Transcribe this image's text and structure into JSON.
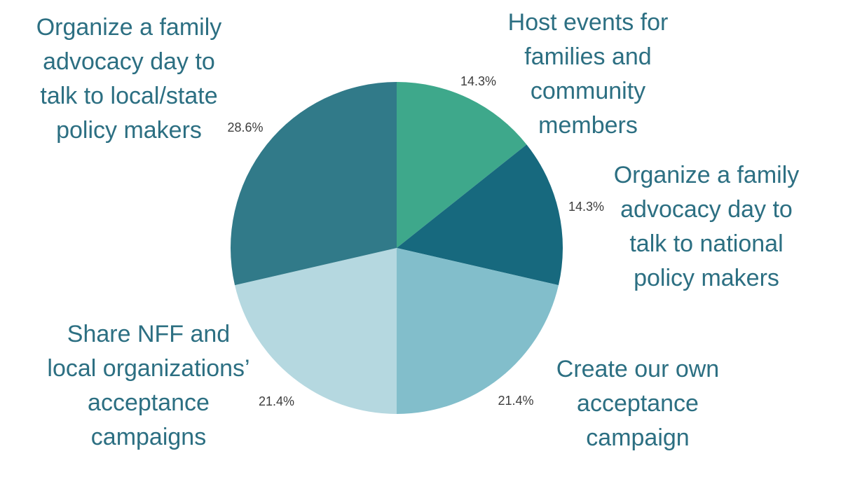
{
  "chart_data": {
    "type": "pie",
    "direction": "clockwise",
    "start_angle_deg": 0,
    "legend": "none",
    "background": "#ffffff",
    "label_color": "#2c6f82",
    "pct_color": "#3d3d3d",
    "slices": [
      {
        "label": "Host events for\nfamilies and\ncommunity\nmembers",
        "value": 14.3,
        "pct_label": "14.3%",
        "color": "#3ea88b"
      },
      {
        "label": "Organize a family\nadvocacy day to\ntalk to national\npolicy makers",
        "value": 14.3,
        "pct_label": "14.3%",
        "color": "#17697e"
      },
      {
        "label": "Create our own\nacceptance\ncampaign",
        "value": 21.4,
        "pct_label": "21.4%",
        "color": "#82becb"
      },
      {
        "label": "Share NFF and\nlocal organizations’\nacceptance\ncampaigns",
        "value": 21.4,
        "pct_label": "21.4%",
        "color": "#b5d8e0"
      },
      {
        "label": "Organize a family\nadvocacy day to\ntalk to local/state\npolicy makers",
        "value": 28.6,
        "pct_label": "28.6%",
        "color": "#317a89"
      }
    ]
  }
}
